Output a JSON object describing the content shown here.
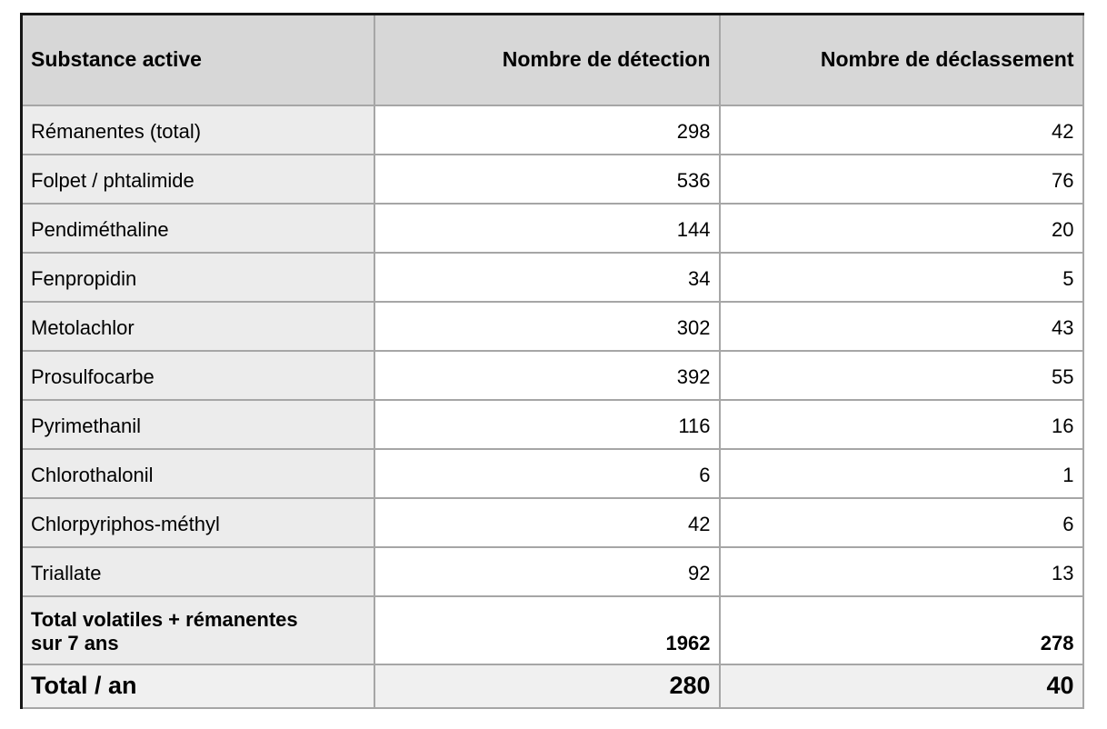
{
  "page": {
    "background": "#ffffff"
  },
  "colors": {
    "header_bg": "#d7d7d7",
    "substance_col_bg": "#ececec",
    "total_row_bg": "#f0f0f0",
    "cell_bg": "#ffffff",
    "border_inner": "#a6a6a6",
    "border_outer": "#161616",
    "text": "#000000"
  },
  "table": {
    "columns": [
      {
        "label": "Substance active",
        "align": "left"
      },
      {
        "label": "Nombre de détection",
        "align": "right"
      },
      {
        "label": "Nombre de déclassement",
        "align": "right"
      }
    ],
    "rows": [
      {
        "type": "data",
        "substance": "Rémanentes (total)",
        "detections": "298",
        "declassements": "42"
      },
      {
        "type": "data",
        "substance": "Folpet / phtalimide",
        "detections": "536",
        "declassements": "76"
      },
      {
        "type": "data",
        "substance": "Pendiméthaline",
        "detections": "144",
        "declassements": "20"
      },
      {
        "type": "data",
        "substance": "Fenpropidin",
        "detections": "34",
        "declassements": "5"
      },
      {
        "type": "data",
        "substance": "Metolachlor",
        "detections": "302",
        "declassements": "43"
      },
      {
        "type": "data",
        "substance": "Prosulfocarbe",
        "detections": "392",
        "declassements": "55"
      },
      {
        "type": "data",
        "substance": "Pyrimethanil",
        "detections": "116",
        "declassements": "16"
      },
      {
        "type": "data",
        "substance": "Chlorothalonil",
        "detections": "6",
        "declassements": "1"
      },
      {
        "type": "data",
        "substance": "Chlorpyriphos-méthyl",
        "detections": "42",
        "declassements": "6"
      },
      {
        "type": "data",
        "substance": "Triallate",
        "detections": "92",
        "declassements": "13"
      },
      {
        "type": "total7",
        "substance": "Total volatiles + rémanentes\nsur 7 ans",
        "detections": "1962",
        "declassements": "278"
      },
      {
        "type": "total_an",
        "substance": "Total / an",
        "detections": "280",
        "declassements": "40"
      }
    ]
  }
}
